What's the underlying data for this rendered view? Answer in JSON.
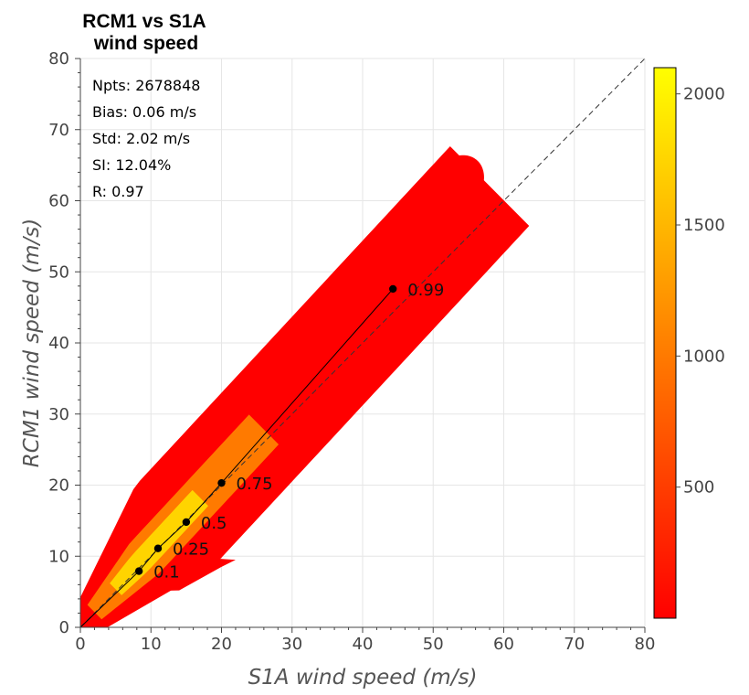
{
  "chart_data": {
    "type": "heatmap",
    "title_lines": [
      "RCM1 vs S1A",
      "wind speed"
    ],
    "xlabel": "S1A wind speed (m/s)",
    "ylabel": "RCM1 wind speed (m/s)",
    "xlim": [
      0,
      80
    ],
    "ylim": [
      0,
      80
    ],
    "xticks": [
      0,
      10,
      20,
      30,
      40,
      50,
      60,
      70,
      80
    ],
    "yticks": [
      0,
      10,
      20,
      30,
      40,
      50,
      60,
      70,
      80
    ],
    "grid": true,
    "stats": [
      {
        "label": "Npts",
        "value": "2678848"
      },
      {
        "label": "Bias",
        "value": "0.06 m/s"
      },
      {
        "label": "Std",
        "value": "2.02 m/s"
      },
      {
        "label": "SI",
        "value": "12.04%"
      },
      {
        "label": "R",
        "value": "0.97"
      }
    ],
    "identity_line": true,
    "quantile_points": [
      {
        "x": 8.3,
        "y": 7.9,
        "label": "0.1"
      },
      {
        "x": 11.0,
        "y": 11.1,
        "label": "0.25"
      },
      {
        "x": 15.0,
        "y": 14.8,
        "label": "0.5"
      },
      {
        "x": 20.0,
        "y": 20.3,
        "label": "0.75"
      },
      {
        "x": 44.3,
        "y": 47.6,
        "label": "0.99"
      }
    ],
    "colorbar": {
      "ticks": [
        500,
        1000,
        1500,
        2000
      ],
      "range": [
        0,
        2100
      ],
      "colormap": [
        "#ff0000",
        "#ff4000",
        "#ff8000",
        "#ffc000",
        "#ffff00"
      ]
    },
    "density_colors": {
      "low": "#ff0000",
      "mid": "#ff7a00",
      "high": "#ffd400"
    }
  }
}
